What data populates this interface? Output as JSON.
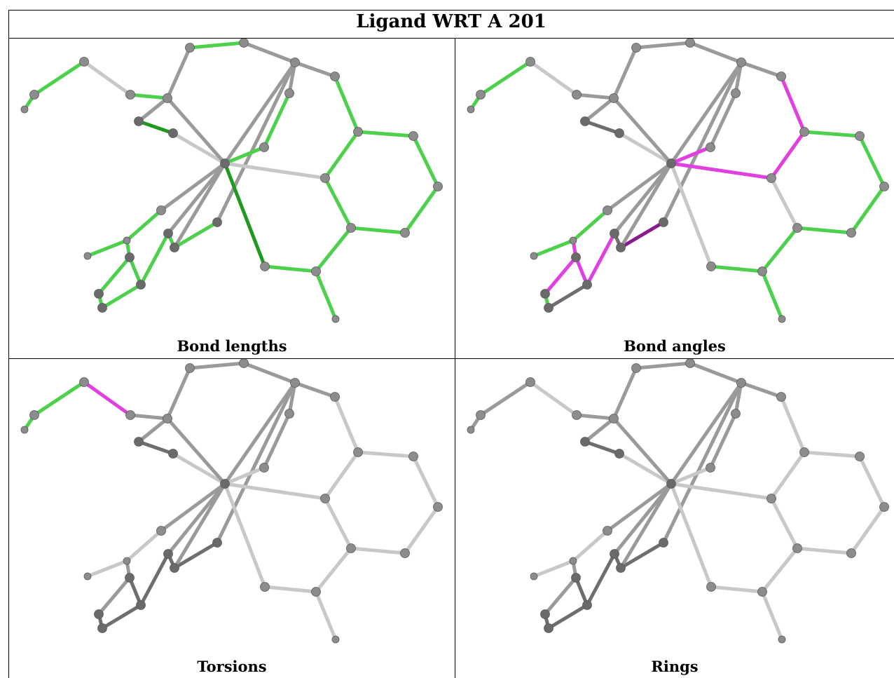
{
  "title": "Ligand WRT A 201",
  "panels": [
    {
      "caption": "Bond lengths",
      "mode": "lengths"
    },
    {
      "caption": "Bond angles",
      "mode": "angles"
    },
    {
      "caption": "Torsions",
      "mode": "torsions"
    },
    {
      "caption": "Rings",
      "mode": "rings"
    }
  ],
  "colors": {
    "outlier_green": "#4dd14d",
    "outlier_dark_green": "#1f9a1f",
    "outlier_magenta": "#e040e0",
    "outlier_dark_magenta": "#8b1a8b",
    "bond_grey": "#9a9a9a",
    "bond_light_grey": "#c8c8c8",
    "atom_grey": "#7a7a7a"
  }
}
